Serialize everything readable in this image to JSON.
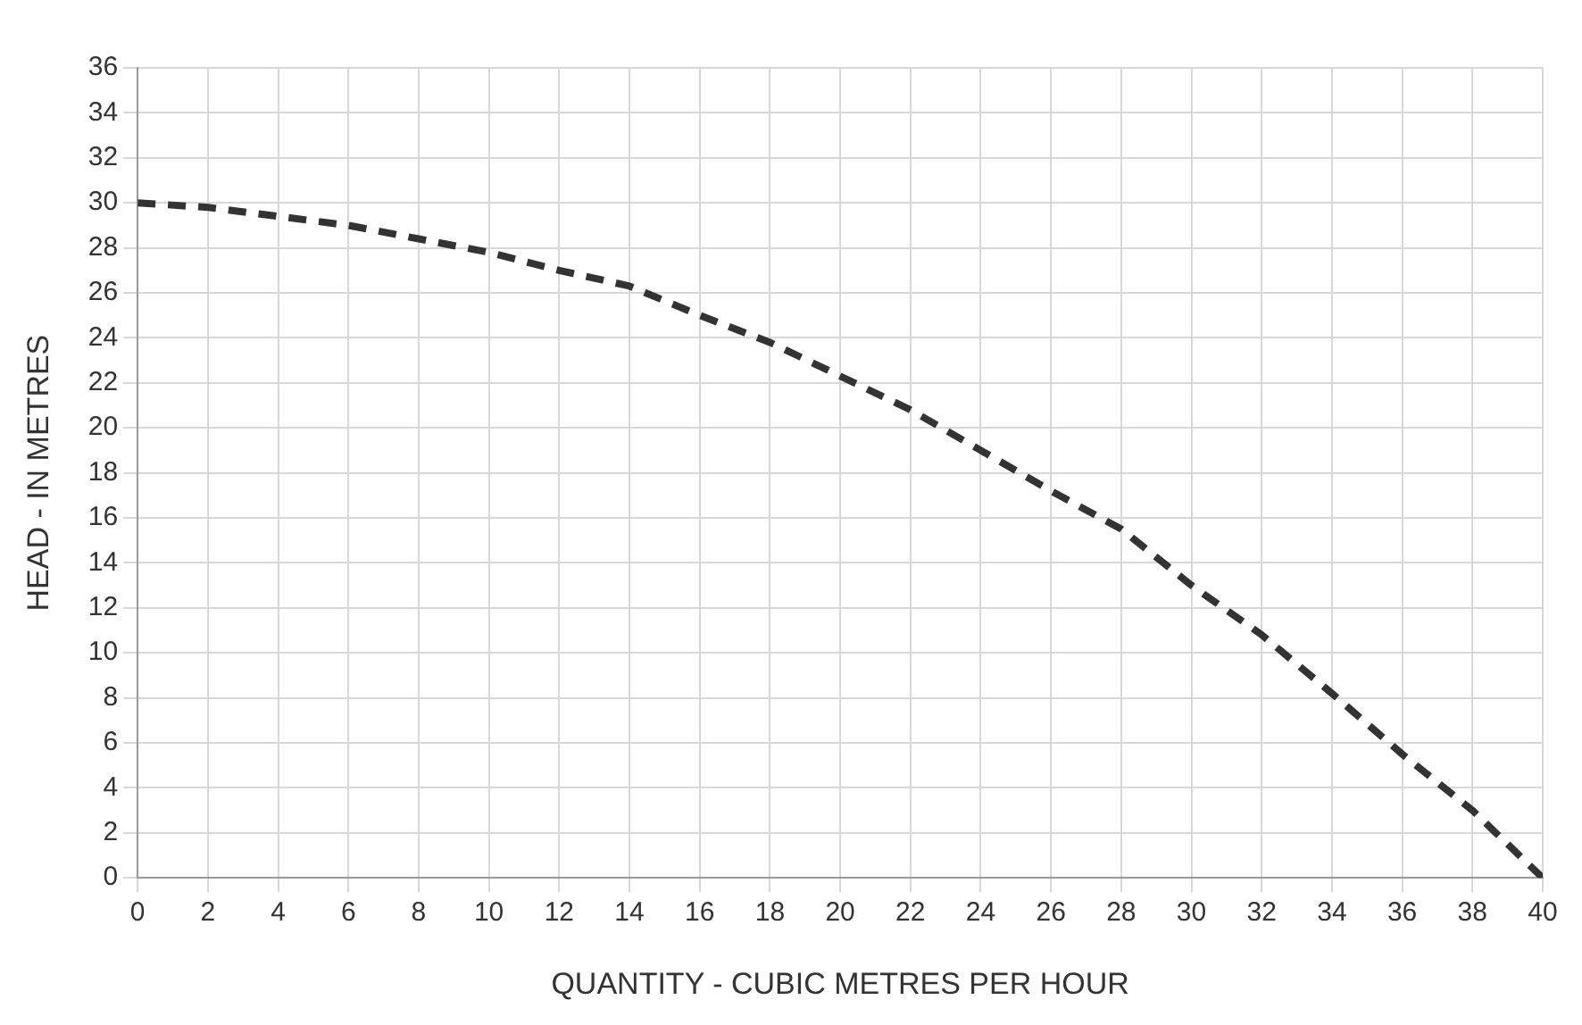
{
  "chart_data": {
    "type": "line",
    "xlabel": "QUANTITY - CUBIC METRES PER HOUR",
    "ylabel": "HEAD - IN METRES",
    "x": [
      0,
      2,
      4,
      6,
      8,
      10,
      12,
      14,
      16,
      18,
      20,
      22,
      24,
      26,
      28,
      30,
      32,
      34,
      36,
      38,
      40
    ],
    "series": [
      {
        "color": "#333333",
        "values": [
          30,
          29.8,
          29.4,
          29,
          28.4,
          27.8,
          27,
          26.3,
          25,
          23.8,
          22.3,
          20.8,
          19,
          17.2,
          15.5,
          13,
          10.8,
          8.2,
          5.5,
          3,
          0
        ]
      }
    ],
    "xlim": [
      0,
      40
    ],
    "xticks": [
      0,
      2,
      4,
      6,
      8,
      10,
      12,
      14,
      16,
      18,
      20,
      22,
      24,
      26,
      28,
      30,
      32,
      34,
      36,
      38,
      40
    ],
    "ylim": [
      0,
      36
    ],
    "yticks": [
      0,
      2,
      4,
      6,
      8,
      10,
      12,
      14,
      16,
      18,
      20,
      22,
      24,
      26,
      28,
      30,
      32,
      34,
      36
    ],
    "grid": true,
    "legend": false,
    "marker": "none",
    "line_style": "dashed"
  }
}
